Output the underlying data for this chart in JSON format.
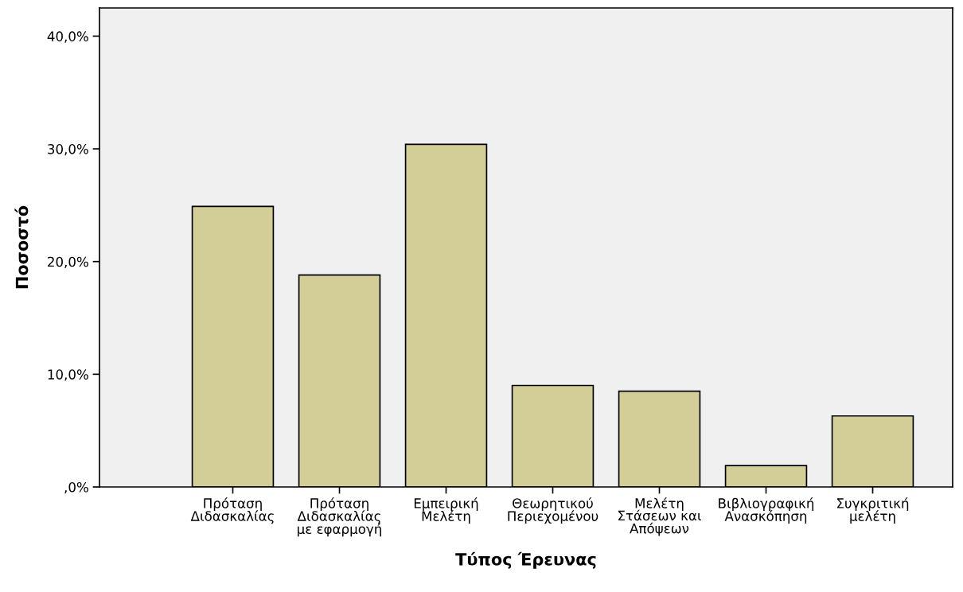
{
  "chart_data": {
    "type": "bar",
    "xlabel": "Τύπος Έρευνας",
    "ylabel": "Ποσοστό",
    "categories": [
      "Πρόταση\nΔιδασκαλίας",
      "Πρόταση\nΔιδασκαλίας\nμε εφαρμογή",
      "Εμπειρική\nΜελέτη",
      "Θεωρητικού\nΠεριεχομένου",
      "Μελέτη\nΣτάσεων και\nΑπόψεων",
      "Βιβλιογραφική\nΑνασκόπηση",
      "Συγκριτική\nμελέτη"
    ],
    "values": [
      24.9,
      18.8,
      30.4,
      9.0,
      8.5,
      1.9,
      6.3
    ],
    "color": "#d3ce98",
    "ylim": [
      0,
      42.5
    ],
    "yticks": [
      {
        "value": 0,
        "label": ",0%"
      },
      {
        "value": 10,
        "label": "10,0%"
      },
      {
        "value": 20,
        "label": "20,0%"
      },
      {
        "value": 30,
        "label": "30,0%"
      },
      {
        "value": 40,
        "label": "40,0%"
      }
    ],
    "grid": false
  }
}
